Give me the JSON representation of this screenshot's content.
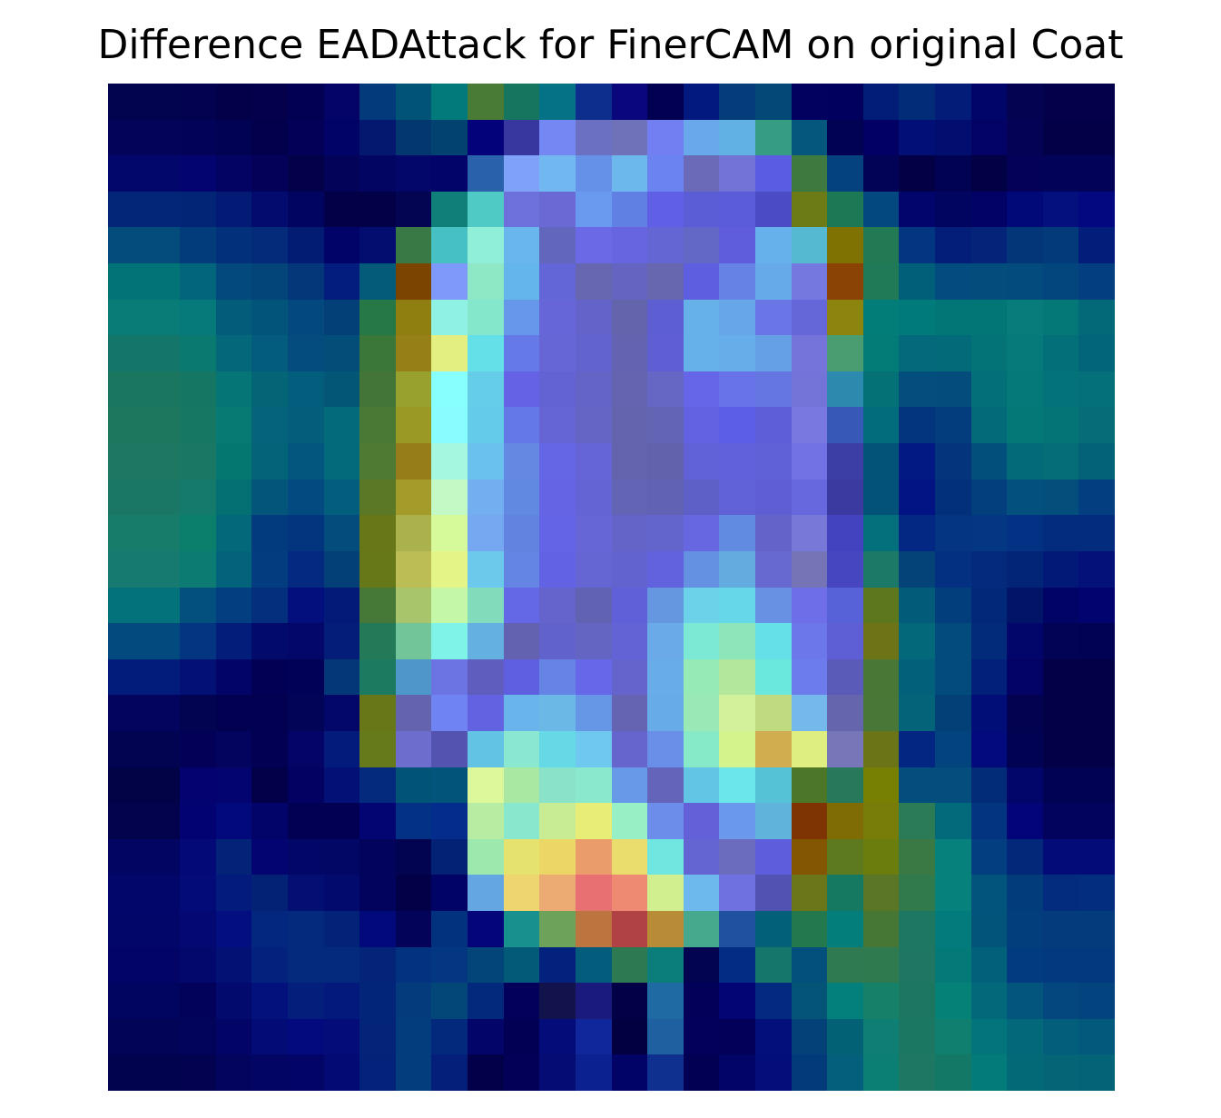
{
  "chart_data": {
    "type": "heatmap",
    "title": "Difference EADAttack for FinerCAM on original Coat",
    "rows": 28,
    "cols": 28,
    "axes_visible": false,
    "colormap": "jet",
    "grid": false,
    "cells": [
      [
        "#020450",
        "#020450",
        "#030250",
        "#03004a",
        "#04004b",
        "#020052",
        "#030466",
        "#033a7c",
        "#025477",
        "#02797b",
        "#4a7b36",
        "#15755e",
        "#057285",
        "#0d2e8d",
        "#0a077d",
        "#020050",
        "#021980",
        "#043d7a",
        "#034877",
        "#02015f",
        "#02005f",
        "#021d76",
        "#022c78",
        "#021c77",
        "#010569",
        "#030352",
        "#020149",
        "#020149"
      ],
      [
        "#020359",
        "#020359",
        "#020258",
        "#020252",
        "#02004c",
        "#030157",
        "#020366",
        "#03186e",
        "#033770",
        "#024270",
        "#03027a",
        "#38379f",
        "#7487f2",
        "#6c70c2",
        "#7072b9",
        "#717ff3",
        "#6aa8ec",
        "#61b1e4",
        "#369c82",
        "#05577d",
        "#020253",
        "#030064",
        "#020f76",
        "#020d70",
        "#020365",
        "#030254",
        "#020148",
        "#020148"
      ],
      [
        "#02076c",
        "#02076c",
        "#030470",
        "#030363",
        "#030258",
        "#02014a",
        "#030359",
        "#030563",
        "#020769",
        "#03046a",
        "#2962ab",
        "#7fa2f8",
        "#71b8f0",
        "#6592e8",
        "#6cb8ec",
        "#6a83f0",
        "#6b6ab9",
        "#7373d6",
        "#5a5de1",
        "#3e7940",
        "#04427e",
        "#020357",
        "#030046",
        "#020252",
        "#020146",
        "#030258",
        "#020258",
        "#020258"
      ],
      [
        "#032679",
        "#032679",
        "#032576",
        "#031b75",
        "#030c6e",
        "#020462",
        "#020046",
        "#020046",
        "#030452",
        "#107f79",
        "#4fcac4",
        "#6e70dc",
        "#6b69d3",
        "#6a99f0",
        "#6080e4",
        "#6060e6",
        "#5b5dd6",
        "#5a5cda",
        "#4b4bc5",
        "#6c7b16",
        "#1d7856",
        "#03487f",
        "#02056b",
        "#020560",
        "#020266",
        "#010878",
        "#03107e",
        "#030880"
      ],
      [
        "#034c7c",
        "#034c7c",
        "#033c7b",
        "#03307a",
        "#032b79",
        "#021b73",
        "#020369",
        "#030c6f",
        "#397946",
        "#47c0c3",
        "#8ff0d7",
        "#68b6ec",
        "#6266bc",
        "#6b69e6",
        "#6765df",
        "#6466d4",
        "#6367c6",
        "#5f5ddc",
        "#66b0ec",
        "#55b9d1",
        "#7f7203",
        "#217a54",
        "#023680",
        "#031e79",
        "#032478",
        "#033579",
        "#033a79",
        "#031d7b"
      ],
      [
        "#027478",
        "#027478",
        "#03657c",
        "#03497e",
        "#034479",
        "#033779",
        "#021d7d",
        "#035b79",
        "#7b4401",
        "#7f99fa",
        "#8ee8c6",
        "#64b5e9",
        "#6366d6",
        "#6767b1",
        "#6565c1",
        "#6767b0",
        "#5e5ee1",
        "#6583e4",
        "#66aae9",
        "#7579df",
        "#8a4205",
        "#207a58",
        "#015f7a",
        "#024c80",
        "#034d7c",
        "#034b7c",
        "#03467e",
        "#033f80"
      ],
      [
        "#0a7c78",
        "#0a7c78",
        "#06797a",
        "#035d7a",
        "#03547b",
        "#03487f",
        "#034078",
        "#267846",
        "#8e7f10",
        "#8ff1e3",
        "#84e7cc",
        "#6598e8",
        "#6666d9",
        "#6363ca",
        "#6464ad",
        "#5e5ed3",
        "#67b1e9",
        "#66a6e9",
        "#6a76e6",
        "#6566d7",
        "#8b8510",
        "#027d78",
        "#017a7b",
        "#027577",
        "#027577",
        "#087c7b",
        "#037876",
        "#036979"
      ],
      [
        "#14756b",
        "#14756b",
        "#0a7a70",
        "#04687a",
        "#035c7e",
        "#034c7d",
        "#034d79",
        "#3b7738",
        "#967f16",
        "#e3ef80",
        "#63e0e8",
        "#6579e7",
        "#6666d7",
        "#6363cf",
        "#6363b2",
        "#5f5fd3",
        "#66b1e9",
        "#66aee9",
        "#659fe6",
        "#7474db",
        "#4a9d70",
        "#037b76",
        "#046a7b",
        "#036a79",
        "#037378",
        "#067a7b",
        "#036f79",
        "#036579"
      ],
      [
        "#1b7660",
        "#1b7660",
        "#157664",
        "#057575",
        "#046576",
        "#035d7c",
        "#035676",
        "#437636",
        "#98a02e",
        "#88ffff",
        "#65cde8",
        "#6662e6",
        "#6363d3",
        "#6464c7",
        "#6464b1",
        "#6666c5",
        "#6666e8",
        "#6872e9",
        "#6575e2",
        "#7373d8",
        "#2d8aaf",
        "#037176",
        "#034e7d",
        "#034c7b",
        "#036f79",
        "#057879",
        "#047279",
        "#03707a"
      ],
      [
        "#1d775f",
        "#1d775f",
        "#167862",
        "#077a74",
        "#03647c",
        "#035d7b",
        "#036a7b",
        "#4a7935",
        "#999923",
        "#87fdff",
        "#65cbea",
        "#6479e6",
        "#6565d5",
        "#6565c6",
        "#6464ae",
        "#6464b5",
        "#6262e2",
        "#5c5ee7",
        "#5e5ed8",
        "#7878e0",
        "#3858b8",
        "#036c7c",
        "#02357d",
        "#033d7d",
        "#036a79",
        "#037876",
        "#057477",
        "#066d76"
      ],
      [
        "#1e7760",
        "#1e7760",
        "#197764",
        "#047870",
        "#036479",
        "#03577e",
        "#036a7b",
        "#4e7a34",
        "#977d1a",
        "#a5f8df",
        "#6ac1ee",
        "#6588e2",
        "#6466e5",
        "#6565d8",
        "#6363ae",
        "#6262ac",
        "#6161d8",
        "#6161dc",
        "#6161d7",
        "#7272e4",
        "#3c3ea6",
        "#035278",
        "#021883",
        "#03347c",
        "#034f7c",
        "#036a79",
        "#056d76",
        "#036178"
      ],
      [
        "#1a7766",
        "#1a7766",
        "#137a6c",
        "#047073",
        "#035579",
        "#034a80",
        "#035d7d",
        "#5a7826",
        "#a39b2a",
        "#c2f9c4",
        "#72aef0",
        "#6289e1",
        "#6464e5",
        "#6464d5",
        "#6464b4",
        "#6262b4",
        "#5f5fc8",
        "#6262d8",
        "#5f5fd3",
        "#6868de",
        "#3b3aa1",
        "#025279",
        "#021383",
        "#03307b",
        "#033f7d",
        "#034f7d",
        "#034e7b",
        "#033f80"
      ],
      [
        "#177c6a",
        "#177c6a",
        "#0b7f6c",
        "#02687a",
        "#033b7f",
        "#03347e",
        "#034c7b",
        "#687717",
        "#a9b24c",
        "#d6f99a",
        "#76a7f1",
        "#6383e1",
        "#6464e6",
        "#6666d6",
        "#6464c8",
        "#6464cd",
        "#6767e2",
        "#608be0",
        "#6463c9",
        "#7878d8",
        "#4343c0",
        "#03707b",
        "#032883",
        "#033583",
        "#033683",
        "#033183",
        "#032b7e",
        "#032c7e"
      ],
      [
        "#177a70",
        "#177a70",
        "#0c7b72",
        "#03637a",
        "#033c7f",
        "#032a80",
        "#034078",
        "#667818",
        "#bcbd55",
        "#e5f487",
        "#6cc9ec",
        "#6585e4",
        "#6262e4",
        "#6565d3",
        "#6363d0",
        "#6262de",
        "#6491e2",
        "#64abe0",
        "#6868d1",
        "#7474b6",
        "#4646c1",
        "#1c7968",
        "#034378",
        "#033080",
        "#032a7d",
        "#032578",
        "#031977",
        "#031178"
      ],
      [
        "#04727a",
        "#04727a",
        "#034f7e",
        "#033f80",
        "#032f7d",
        "#030f7d",
        "#031a79",
        "#467837",
        "#a9c56b",
        "#c4f7a8",
        "#82dbbb",
        "#6467e6",
        "#6464cc",
        "#6262b2",
        "#6060d8",
        "#6597e1",
        "#6cd2ea",
        "#65d7e8",
        "#6891e4",
        "#6e6ee8",
        "#5762d9",
        "#5d771d",
        "#035b7a",
        "#033e7c",
        "#02287a",
        "#021468",
        "#020465",
        "#02036e"
      ],
      [
        "#034b7e",
        "#034b7e",
        "#033580",
        "#031e7a",
        "#020b6a",
        "#020768",
        "#031d79",
        "#247958",
        "#72c599",
        "#7ff3e8",
        "#63b0e1",
        "#6262b0",
        "#6262cc",
        "#6464c3",
        "#6363d6",
        "#6aaae8",
        "#7ce9d5",
        "#8ce6b9",
        "#66e0e8",
        "#6c78e9",
        "#5e5ed5",
        "#6c7417",
        "#03697a",
        "#034b7c",
        "#022c79",
        "#02056a",
        "#020355",
        "#020255"
      ],
      [
        "#021c7c",
        "#021c7c",
        "#031076",
        "#020567",
        "#020055",
        "#020158",
        "#033778",
        "#1b7a5f",
        "#4d97ca",
        "#6c73e2",
        "#5f5ebe",
        "#5f5fe2",
        "#6684e5",
        "#6767e9",
        "#6464cc",
        "#68ade9",
        "#95eab6",
        "#b2e79c",
        "#6ae8dd",
        "#6d7cec",
        "#5a5ab8",
        "#497735",
        "#02607a",
        "#034a7d",
        "#02207a",
        "#020365",
        "#020148",
        "#020147"
      ],
      [
        "#03045e",
        "#03045e",
        "#020451",
        "#020050",
        "#020050",
        "#020458",
        "#030767",
        "#687718",
        "#6363b0",
        "#6f83f2",
        "#6363e1",
        "#69b4eb",
        "#6bb8e6",
        "#6697e6",
        "#6464b2",
        "#67abe9",
        "#99e8b5",
        "#d3f19a",
        "#bfda7f",
        "#74b8ec",
        "#6565ad",
        "#497738",
        "#036379",
        "#034078",
        "#020e77",
        "#020250",
        "#020147",
        "#020147"
      ],
      [
        "#020351",
        "#020351",
        "#030057",
        "#03045e",
        "#020052",
        "#030466",
        "#031c7b",
        "#667a1b",
        "#6c6dcd",
        "#5454b0",
        "#62c3e4",
        "#8be8d0",
        "#66d9e7",
        "#6ec8ef",
        "#6565cd",
        "#6a8fe9",
        "#86e9c7",
        "#d5f38d",
        "#d2ad4f",
        "#dfee80",
        "#7676b8",
        "#6b7517",
        "#022682",
        "#03437e",
        "#020a7c",
        "#020252",
        "#020148",
        "#020148"
      ],
      [
        "#020347",
        "#020347",
        "#030270",
        "#03046f",
        "#020048",
        "#030262",
        "#031076",
        "#032a7d",
        "#025477",
        "#03547b",
        "#dcf89a",
        "#a9e8a3",
        "#8ae3c8",
        "#8ae8cc",
        "#669ae8",
        "#6464bb",
        "#63c5e6",
        "#6ce7e9",
        "#56c2d6",
        "#4c7728",
        "#28795c",
        "#788004",
        "#034e7d",
        "#034e7c",
        "#032c78",
        "#020569",
        "#020252",
        "#020252"
      ],
      [
        "#02034c",
        "#02034c",
        "#030273",
        "#020a7b",
        "#03046a",
        "#020052",
        "#020052",
        "#030672",
        "#033284",
        "#032c8d",
        "#b8eca3",
        "#89e7cd",
        "#c7ec93",
        "#e7ed77",
        "#96efc5",
        "#6c8de9",
        "#6360d8",
        "#6a99ec",
        "#60b4dc",
        "#7e3503",
        "#806c04",
        "#787c09",
        "#2a7b56",
        "#036a7c",
        "#02347f",
        "#020477",
        "#02035c",
        "#02035c"
      ],
      [
        "#020562",
        "#020562",
        "#030976",
        "#032378",
        "#030472",
        "#020666",
        "#020664",
        "#02035c",
        "#020351",
        "#032175",
        "#9de8ad",
        "#e6e26e",
        "#ecd766",
        "#ea9d6a",
        "#ebdc6e",
        "#6fe7e0",
        "#6464d2",
        "#6b6cbd",
        "#5e5edd",
        "#835601",
        "#5d7a1e",
        "#6b7d0d",
        "#3b7944",
        "#07817b",
        "#033e80",
        "#032779",
        "#020b78",
        "#020b78"
      ],
      [
        "#020569",
        "#020569",
        "#030b78",
        "#031b7c",
        "#032276",
        "#030f73",
        "#030a6d",
        "#02035c",
        "#020046",
        "#020465",
        "#64a6e2",
        "#efd56f",
        "#ebab72",
        "#e87072",
        "#ee8a72",
        "#d2ef8f",
        "#6db9ee",
        "#6f71e0",
        "#5252b2",
        "#6b761b",
        "#157860",
        "#5a7626",
        "#317a4c",
        "#06817b",
        "#03547c",
        "#033c7a",
        "#032c7e",
        "#032d7f"
      ],
      [
        "#020669",
        "#020669",
        "#030872",
        "#030e81",
        "#03267e",
        "#032a7c",
        "#032379",
        "#02097a",
        "#020359",
        "#02317e",
        "#030579",
        "#18918e",
        "#6ca25a",
        "#bc753e",
        "#b04245",
        "#b88b37",
        "#46a88d",
        "#1e52a0",
        "#026078",
        "#23784e",
        "#037e7b",
        "#477735",
        "#1e7761",
        "#037b7c",
        "#03547b",
        "#033e7c",
        "#033b7c",
        "#033b7c"
      ],
      [
        "#020466",
        "#020466",
        "#03086d",
        "#031175",
        "#03227e",
        "#032a7c",
        "#032a7c",
        "#032479",
        "#033280",
        "#033781",
        "#034479",
        "#035a78",
        "#03227d",
        "#035c7c",
        "#2d7951",
        "#0b7d7a",
        "#020452",
        "#032d84",
        "#15776b",
        "#03507c",
        "#307a51",
        "#307a50",
        "#1f7661",
        "#037978",
        "#03607a",
        "#033b80",
        "#033a7f",
        "#033a7f"
      ],
      [
        "#020560",
        "#020560",
        "#02025a",
        "#030a6d",
        "#03117d",
        "#031e7b",
        "#031a7c",
        "#032579",
        "#033b7c",
        "#034779",
        "#03297d",
        "#02005a",
        "#12134d",
        "#1a1a7c",
        "#020047",
        "#1f6aa2",
        "#020059",
        "#030575",
        "#032a7e",
        "#035477",
        "#03807b",
        "#168068",
        "#1d7660",
        "#058178",
        "#03697a",
        "#03557d",
        "#03477e",
        "#03447e"
      ],
      [
        "#020557",
        "#020557",
        "#02035a",
        "#030566",
        "#030c76",
        "#030a7e",
        "#030c79",
        "#032478",
        "#033d7d",
        "#03297d",
        "#030568",
        "#020054",
        "#040c7a",
        "#10269b",
        "#020041",
        "#1f61a0",
        "#02005a",
        "#020059",
        "#030f7b",
        "#034178",
        "#036175",
        "#0e7f72",
        "#1c7762",
        "#117f70",
        "#03747b",
        "#03687a",
        "#035e7b",
        "#03597b"
      ],
      [
        "#02034e",
        "#02034e",
        "#020251",
        "#03045e",
        "#030564",
        "#030566",
        "#030a73",
        "#03237a",
        "#033d7e",
        "#031f79",
        "#020048",
        "#020057",
        "#050d74",
        "#0b2190",
        "#020367",
        "#10308f",
        "#020053",
        "#030566",
        "#030e7b",
        "#033a79",
        "#035f7c",
        "#0b7f73",
        "#1d7762",
        "#147866",
        "#037b7b",
        "#036977",
        "#036576",
        "#036377"
      ]
    ]
  }
}
